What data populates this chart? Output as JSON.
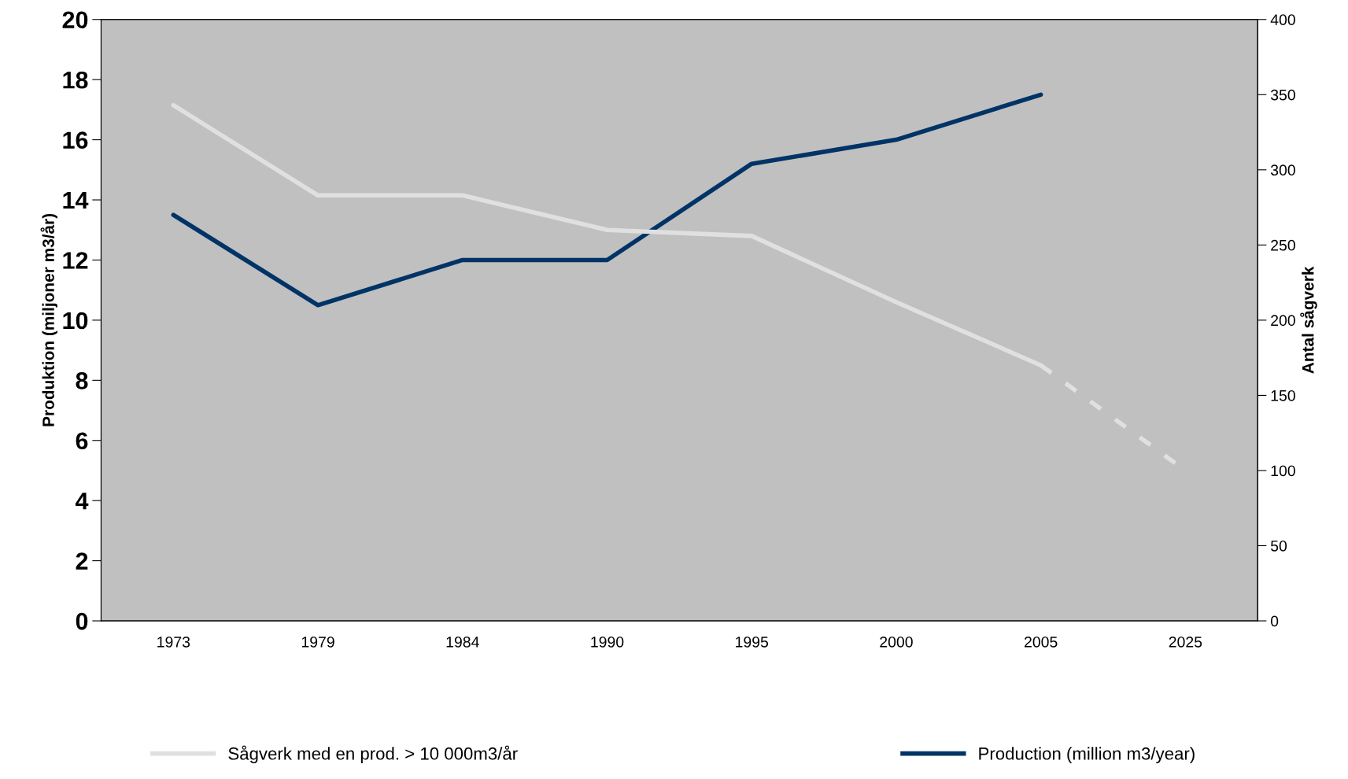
{
  "chart_data": {
    "type": "line",
    "categories": [
      "1973",
      "1979",
      "1984",
      "1990",
      "1995",
      "2000",
      "2005",
      "2025"
    ],
    "ylabel": "Produktion (miljoner m3/år)",
    "y2label": "Antal sågverk",
    "ylim": [
      0,
      20
    ],
    "yticks": [
      0,
      2,
      4,
      6,
      8,
      10,
      12,
      14,
      16,
      18,
      20
    ],
    "y2lim": [
      0,
      400
    ],
    "y2ticks": [
      0,
      50,
      100,
      150,
      200,
      250,
      300,
      350,
      400
    ],
    "grid": false,
    "legend": "bottom",
    "marker": "none",
    "series": [
      {
        "name": "Sågverk med en prod. > 10 000m3/år",
        "color": "#e0e0e0",
        "axis": "y2",
        "line_style": "solid",
        "values": [
          343,
          283,
          283,
          260,
          256,
          212,
          170,
          null
        ]
      },
      {
        "color": "#e0e0e0",
        "axis": "y2",
        "line_style": "dashed",
        "values": [
          null,
          null,
          null,
          null,
          null,
          null,
          170,
          100
        ]
      },
      {
        "name": "Production (million m3/year)",
        "color": "#003366",
        "line_style": "solid",
        "values": [
          13.5,
          10.5,
          12,
          12,
          15.2,
          16,
          17.5,
          null
        ]
      }
    ]
  }
}
